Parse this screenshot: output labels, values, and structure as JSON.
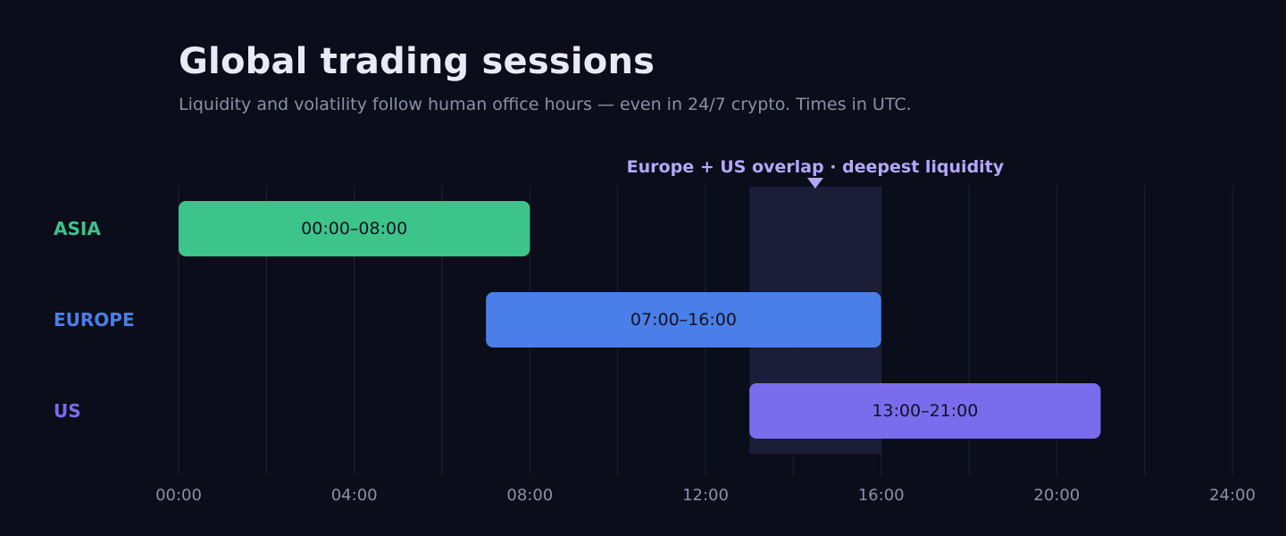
{
  "header": {
    "title": "Global trading sessions",
    "subtitle": "Liquidity and volatility follow human office hours — even in 24/7 crypto. Times in UTC."
  },
  "chart_data": {
    "type": "gantt",
    "x_unit": "hours UTC",
    "xlim": [
      0,
      24
    ],
    "x_ticks": [
      0,
      4,
      8,
      12,
      16,
      20,
      24
    ],
    "x_tick_labels": [
      "00:00",
      "04:00",
      "08:00",
      "12:00",
      "16:00",
      "20:00",
      "24:00"
    ],
    "grid": true,
    "grid_step_hours": 2,
    "sessions": [
      {
        "name": "ASIA",
        "start": 0,
        "end": 8,
        "label": "00:00–08:00",
        "color": "#3cc48a"
      },
      {
        "name": "EUROPE",
        "start": 7,
        "end": 16,
        "label": "07:00–16:00",
        "color": "#4a7ee8"
      },
      {
        "name": "US",
        "start": 13,
        "end": 21,
        "label": "13:00–21:00",
        "color": "#7b6cee"
      }
    ],
    "highlight": {
      "start": 13,
      "end": 16,
      "label": "Europe + US overlap · deepest liquidity",
      "marker_at": 14.5,
      "color": "#b3a8ff"
    }
  },
  "colors": {
    "background": "#0b0d1a",
    "grid": "#1d2132",
    "overlap_band": "#1c1e38",
    "tick_label": "#8b90a6",
    "bar_text": "#0f1120"
  }
}
